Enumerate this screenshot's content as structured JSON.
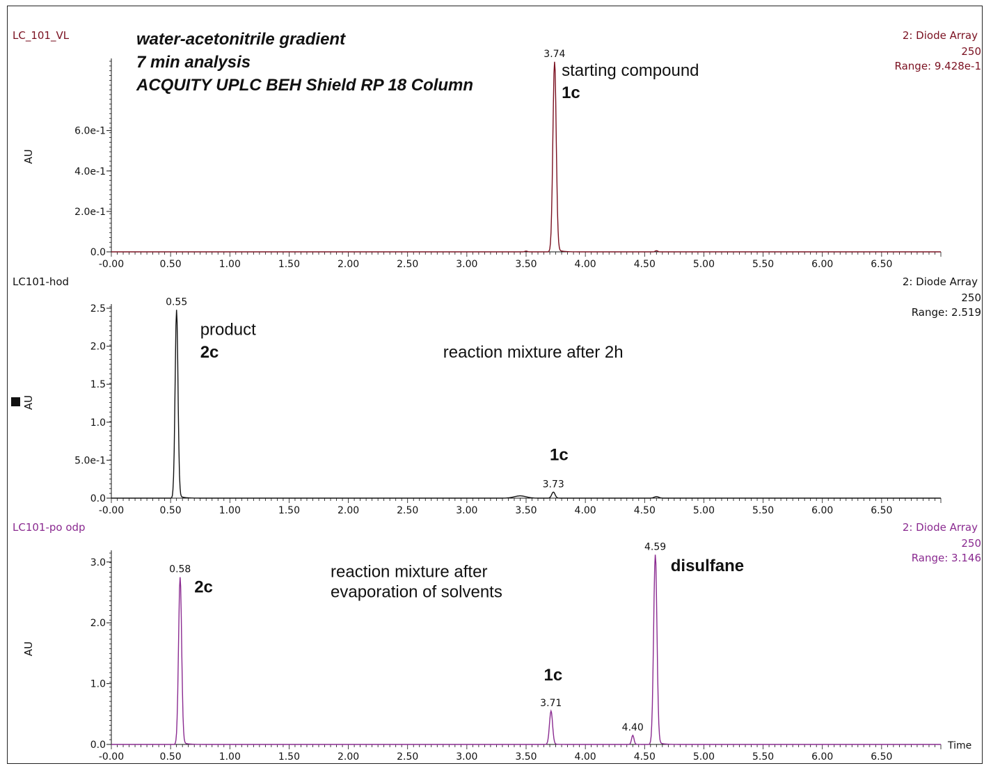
{
  "header": {
    "lines": [
      "water-acetonitrile gradient",
      "7 min analysis",
      "ACQUITY UPLC BEH Shield RP 18 Column"
    ]
  },
  "chart_data": [
    {
      "type": "line",
      "sample": "LC_101_VL",
      "detector": "2: Diode Array",
      "wavelength": "250",
      "range_text": "Range: 9.428e-1",
      "color": "#7a1020",
      "xlim": [
        0,
        7.0
      ],
      "ylim": [
        0,
        0.9428
      ],
      "xticks": [
        "-0.00",
        "0.50",
        "1.00",
        "1.50",
        "2.00",
        "2.50",
        "3.00",
        "3.50",
        "4.00",
        "4.50",
        "5.00",
        "5.50",
        "6.00",
        "6.50"
      ],
      "yticks": [
        {
          "v": 0,
          "label": "0.0"
        },
        {
          "v": 0.2,
          "label": "2.0e-1"
        },
        {
          "v": 0.4,
          "label": "4.0e-1"
        },
        {
          "v": 0.6,
          "label": "6.0e-1"
        }
      ],
      "ylabel": "AU",
      "peaks": [
        {
          "x": 3.74,
          "y": 0.94,
          "w": 0.014,
          "label": "3.74"
        },
        {
          "x": 3.5,
          "y": 0.004,
          "w": 0.01
        },
        {
          "x": 4.6,
          "y": 0.006,
          "w": 0.01
        }
      ],
      "annotations": [
        {
          "text": "starting compound",
          "x": 3.8,
          "y": 0.87,
          "bold": false
        },
        {
          "text": "1c",
          "x": 3.8,
          "y": 0.76,
          "bold": true
        }
      ]
    },
    {
      "type": "line",
      "sample": "LC101-hod",
      "detector": "2: Diode Array",
      "wavelength": "250",
      "range_text": "Range: 2.519",
      "color": "#111111",
      "xlim": [
        0,
        7.0
      ],
      "ylim": [
        0,
        2.519
      ],
      "xticks": [
        "-0.00",
        "0.50",
        "1.00",
        "1.50",
        "2.00",
        "2.50",
        "3.00",
        "3.50",
        "4.00",
        "4.50",
        "5.00",
        "5.50",
        "6.00",
        "6.50"
      ],
      "yticks": [
        {
          "v": 0,
          "label": "0.0"
        },
        {
          "v": 0.5,
          "label": "5.0e-1"
        },
        {
          "v": 1.0,
          "label": "1.0"
        },
        {
          "v": 1.5,
          "label": "1.5"
        },
        {
          "v": 2.0,
          "label": "2.0"
        },
        {
          "v": 2.5,
          "label": "2.5"
        }
      ],
      "ylabel": "AU",
      "peaks": [
        {
          "x": 0.55,
          "y": 2.48,
          "w": 0.012,
          "label": "0.55"
        },
        {
          "x": 3.73,
          "y": 0.08,
          "w": 0.014,
          "label": "3.73"
        },
        {
          "x": 3.45,
          "y": 0.03,
          "w": 0.05
        },
        {
          "x": 4.6,
          "y": 0.02,
          "w": 0.02
        }
      ],
      "annotations": [
        {
          "text": "product",
          "x": 0.75,
          "y": 2.15,
          "bold": false
        },
        {
          "text": "2c",
          "x": 0.75,
          "y": 1.85,
          "bold": true
        },
        {
          "text": "reaction mixture after 2h",
          "x": 2.8,
          "y": 1.85,
          "bold": false
        },
        {
          "text": "1c",
          "x": 3.7,
          "y": 0.5,
          "bold": true
        }
      ]
    },
    {
      "type": "line",
      "sample": "LC101-po odp",
      "detector": "2: Diode Array",
      "wavelength": "250",
      "range_text": "Range: 3.146",
      "color": "#8a2a90",
      "xlim": [
        0,
        7.0
      ],
      "ylim": [
        0,
        3.146
      ],
      "xticks": [
        "-0.00",
        "0.50",
        "1.00",
        "1.50",
        "2.00",
        "2.50",
        "3.00",
        "3.50",
        "4.00",
        "4.50",
        "5.00",
        "5.50",
        "6.00",
        "6.50"
      ],
      "yticks": [
        {
          "v": 0,
          "label": "0.0"
        },
        {
          "v": 1.0,
          "label": "1.0"
        },
        {
          "v": 2.0,
          "label": "2.0"
        },
        {
          "v": 3.0,
          "label": "3.0"
        }
      ],
      "ylabel": "AU",
      "xlabel": "Time",
      "peaks": [
        {
          "x": 0.58,
          "y": 2.75,
          "w": 0.013,
          "label": "0.58"
        },
        {
          "x": 3.71,
          "y": 0.55,
          "w": 0.013,
          "label": "3.71"
        },
        {
          "x": 4.4,
          "y": 0.15,
          "w": 0.01,
          "label": "4.40"
        },
        {
          "x": 4.59,
          "y": 3.12,
          "w": 0.014,
          "label": "4.59"
        }
      ],
      "annotations": [
        {
          "text": "2c",
          "x": 0.7,
          "y": 2.5,
          "bold": true
        },
        {
          "text": "reaction mixture after",
          "x": 1.85,
          "y": 2.75,
          "bold": false
        },
        {
          "text": "evaporation of solvents",
          "x": 1.85,
          "y": 2.42,
          "bold": false
        },
        {
          "text": "1c",
          "x": 3.65,
          "y": 1.05,
          "bold": true
        },
        {
          "text": "disulfane",
          "x": 4.72,
          "y": 2.85,
          "bold": true
        }
      ]
    }
  ]
}
